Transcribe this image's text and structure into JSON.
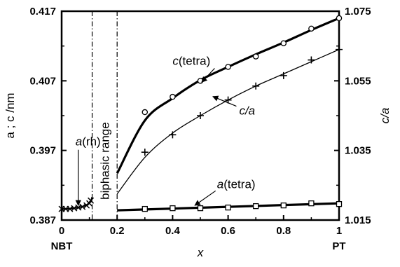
{
  "chart_data": {
    "type": "line",
    "title": "",
    "xlabel": "x",
    "ylabel_left": "a ; c /nm",
    "ylabel_right": "c/a",
    "xlim": [
      0,
      1
    ],
    "ylim_left": [
      0.387,
      0.417
    ],
    "ylim_right": [
      1.015,
      1.075
    ],
    "x_ticks": [
      "0",
      "0.2",
      "0.4",
      "0.6",
      "0.8",
      "1"
    ],
    "y_ticks_left": [
      "0.387",
      "0.397",
      "0.407",
      "0.417"
    ],
    "y_ticks_right": [
      "1.015",
      "1.035",
      "1.055",
      "1.075"
    ],
    "x_end_labels": {
      "left": "NBT",
      "right": "PT"
    },
    "grid": false,
    "biphasic_range": {
      "label": "biphasic range",
      "x": [
        0.11,
        0.2
      ]
    },
    "series": [
      {
        "name": "c(tetra)",
        "axis": "left",
        "marker": "circle",
        "x": [
          0.3,
          0.4,
          0.5,
          0.6,
          0.7,
          0.8,
          0.9,
          1.0
        ],
        "y": [
          0.4025,
          0.4047,
          0.407,
          0.409,
          0.4105,
          0.4124,
          0.4145,
          0.416
        ],
        "fit_x": [
          0.2,
          0.3,
          0.4,
          0.5,
          0.6,
          0.7,
          0.8,
          0.9,
          1.0
        ],
        "fit_y": [
          0.3937,
          0.4013,
          0.4045,
          0.4071,
          0.409,
          0.4108,
          0.4125,
          0.4143,
          0.416
        ]
      },
      {
        "name": "c/a",
        "axis": "right",
        "marker": "plus",
        "x": [
          0.3,
          0.4,
          0.5,
          0.6,
          0.7,
          0.8,
          0.9,
          1.0
        ],
        "y": [
          1.0345,
          1.0395,
          1.045,
          1.0495,
          1.0535,
          1.0565,
          1.061,
          1.064
        ],
        "fit_x": [
          0.2,
          0.3,
          0.4,
          0.5,
          0.6,
          0.7,
          0.8,
          0.9,
          1.0
        ],
        "fit_y": [
          1.0225,
          1.033,
          1.04,
          1.045,
          1.0495,
          1.0535,
          1.057,
          1.0605,
          1.064
        ]
      },
      {
        "name": "a(tetra)",
        "axis": "left",
        "marker": "square",
        "x": [
          0.3,
          0.4,
          0.5,
          0.6,
          0.7,
          0.8,
          0.9,
          1.0
        ],
        "y": [
          0.3886,
          0.3887,
          0.3887,
          0.3888,
          0.389,
          0.3891,
          0.3894,
          0.3893
        ],
        "fit_x": [
          0.2,
          1.0
        ],
        "fit_y": [
          0.3884,
          0.3894
        ]
      },
      {
        "name": "a(rh)",
        "axis": "left",
        "marker": "cross",
        "x": [
          0.0,
          0.015,
          0.03,
          0.045,
          0.06,
          0.075,
          0.09,
          0.1,
          0.105
        ],
        "y": [
          0.3886,
          0.3886,
          0.3886,
          0.3887,
          0.3888,
          0.3889,
          0.3891,
          0.3894,
          0.3898
        ],
        "fit_x": [
          0.0,
          0.02,
          0.04,
          0.06,
          0.08,
          0.095,
          0.105,
          0.11
        ],
        "fit_y": [
          0.3886,
          0.3886,
          0.3887,
          0.3888,
          0.389,
          0.3893,
          0.3897,
          0.3903
        ]
      }
    ],
    "annotations": [
      {
        "italic": "c",
        "text": "(tetra)",
        "target_series": "c(tetra)",
        "at": [
          0.4,
          0.4093
        ],
        "axis": "left"
      },
      {
        "italic": "c/a",
        "text": "",
        "target_series": "c/a",
        "at": [
          0.64,
          1.0453
        ],
        "axis": "right"
      },
      {
        "italic": "a",
        "text": "(tetra)",
        "target_series": "a(tetra)",
        "at": [
          0.56,
          0.3916
        ],
        "axis": "left"
      },
      {
        "italic": "a",
        "text": "(rh)",
        "target_series": "a(rh)",
        "at": [
          0.05,
          0.3977
        ],
        "axis": "left"
      }
    ]
  }
}
